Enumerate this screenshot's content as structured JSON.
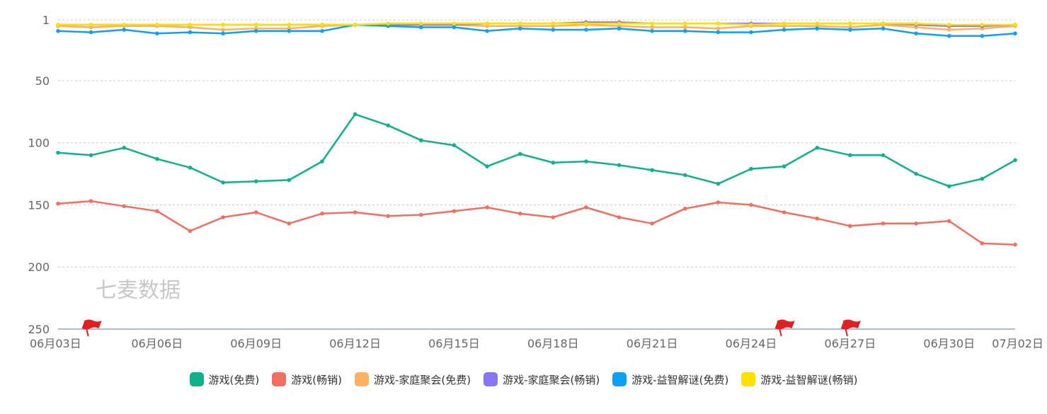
{
  "watermark": "七麦数据",
  "chart_data": {
    "type": "line",
    "y_inverted": true,
    "ylim": [
      1,
      250
    ],
    "yticks": [
      1,
      50,
      100,
      150,
      200,
      250
    ],
    "x": [
      "06月03日",
      "06月04日",
      "06月05日",
      "06月06日",
      "06月07日",
      "06月08日",
      "06月09日",
      "06月10日",
      "06月11日",
      "06月12日",
      "06月13日",
      "06月14日",
      "06月15日",
      "06月16日",
      "06月17日",
      "06月18日",
      "06月19日",
      "06月20日",
      "06月21日",
      "06月22日",
      "06月23日",
      "06月24日",
      "06月25日",
      "06月26日",
      "06月27日",
      "06月28日",
      "06月29日",
      "06月30日",
      "07月01日",
      "07月02日"
    ],
    "xticks": [
      "06月03日",
      "06月06日",
      "06月09日",
      "06月12日",
      "06月15日",
      "06月18日",
      "06月21日",
      "06月24日",
      "06月27日",
      "06月30日",
      "07月02日"
    ],
    "grid": true,
    "legend_position": "bottom",
    "series": [
      {
        "name": "游戏(免费)",
        "color": "#0fb18b",
        "values": [
          108,
          110,
          104,
          113,
          120,
          132,
          131,
          130,
          115,
          77,
          86,
          98,
          102,
          119,
          109,
          116,
          115,
          118,
          122,
          126,
          133,
          121,
          119,
          104,
          110,
          110,
          125,
          135,
          129,
          114
        ]
      },
      {
        "name": "游戏(畅销)",
        "color": "#f26e62",
        "values": [
          149,
          147,
          151,
          155,
          171,
          160,
          156,
          165,
          157,
          156,
          159,
          158,
          155,
          152,
          157,
          160,
          152,
          160,
          165,
          153,
          148,
          150,
          156,
          161,
          167,
          165,
          165,
          163,
          181,
          182
        ]
      },
      {
        "name": "游戏-家庭聚会(免费)",
        "color": "#fdb162",
        "values": [
          6,
          7,
          6,
          6,
          7,
          9,
          8,
          8,
          6,
          5,
          5,
          5,
          5,
          6,
          6,
          6,
          5,
          6,
          7,
          7,
          8,
          6,
          6,
          6,
          7,
          5,
          7,
          9,
          8,
          6
        ]
      },
      {
        "name": "游戏-家庭聚会(畅销)",
        "color": "#8774f6",
        "values": [
          5,
          5,
          5,
          5,
          5,
          5,
          5,
          5,
          5,
          5,
          5,
          5,
          5,
          4,
          4,
          4,
          3,
          3,
          4,
          4,
          4,
          4,
          4,
          4,
          4,
          4,
          5,
          6,
          6,
          5
        ]
      },
      {
        "name": "游戏-益智解谜(免费)",
        "color": "#0fa0f5",
        "values": [
          10,
          11,
          9,
          12,
          11,
          12,
          10,
          10,
          10,
          5,
          6,
          7,
          7,
          10,
          8,
          9,
          9,
          8,
          10,
          10,
          11,
          11,
          9,
          8,
          9,
          8,
          12,
          14,
          14,
          12
        ]
      },
      {
        "name": "游戏-益智解谜(畅销)",
        "color": "#ffe000",
        "values": [
          5,
          5,
          5,
          5,
          5,
          5,
          5,
          5,
          5,
          5,
          4,
          4,
          4,
          4,
          4,
          4,
          4,
          4,
          4,
          4,
          4,
          5,
          4,
          4,
          4,
          4,
          4,
          5,
          5,
          5
        ]
      }
    ],
    "markers": [
      {
        "type": "flag",
        "color": "#e02020",
        "x": "06月04日"
      },
      {
        "type": "flag",
        "color": "#e02020",
        "x": "06月25日"
      },
      {
        "type": "flag",
        "color": "#e02020",
        "x": "06月27日"
      }
    ]
  }
}
